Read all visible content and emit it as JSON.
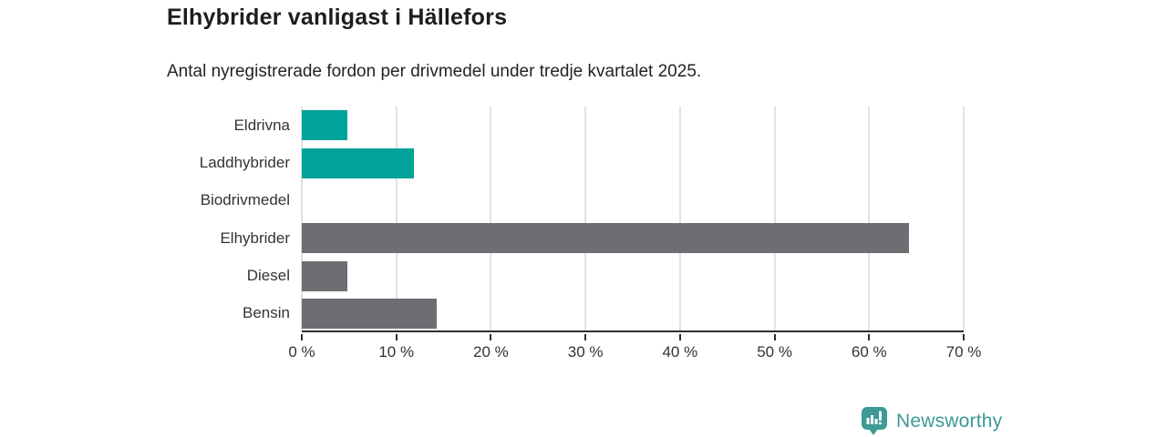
{
  "header": {
    "title": "Elhybrider vanligast i Hällefors",
    "subtitle": "Antal nyregistrerade fordon per drivmedel under tredje kvartalet 2025."
  },
  "chart_data": {
    "type": "bar",
    "orientation": "horizontal",
    "title": "Elhybrider vanligast i Hällefors",
    "subtitle": "Antal nyregistrerade fordon per drivmedel under tredje kvartalet 2025.",
    "categories": [
      "Eldrivna",
      "Laddhybrider",
      "Biodrivmedel",
      "Elhybrider",
      "Diesel",
      "Bensin"
    ],
    "values": [
      4.8,
      11.9,
      0,
      64.2,
      4.8,
      14.3
    ],
    "unit": "%",
    "xlim": [
      0,
      70
    ],
    "xticks": [
      0,
      10,
      20,
      30,
      40,
      50,
      60,
      70
    ],
    "xtick_labels": [
      "0 %",
      "10 %",
      "20 %",
      "30 %",
      "40 %",
      "50 %",
      "60 %",
      "70 %"
    ],
    "bar_colors": [
      "#00a29a",
      "#00a29a",
      "#00a29a",
      "#6d6d72",
      "#6d6d72",
      "#6d6d72"
    ],
    "grid": "vertical",
    "legend": "none",
    "xlabel": "",
    "ylabel": ""
  },
  "footer": {
    "brand": "Newsworthy"
  },
  "colors": {
    "highlight_teal": "#00a29a",
    "bar_gray": "#6d6d72",
    "brand_teal": "#3d9a94",
    "gridline": "#e2e2e2",
    "axis": "#2f2f33",
    "text": "#333333"
  }
}
